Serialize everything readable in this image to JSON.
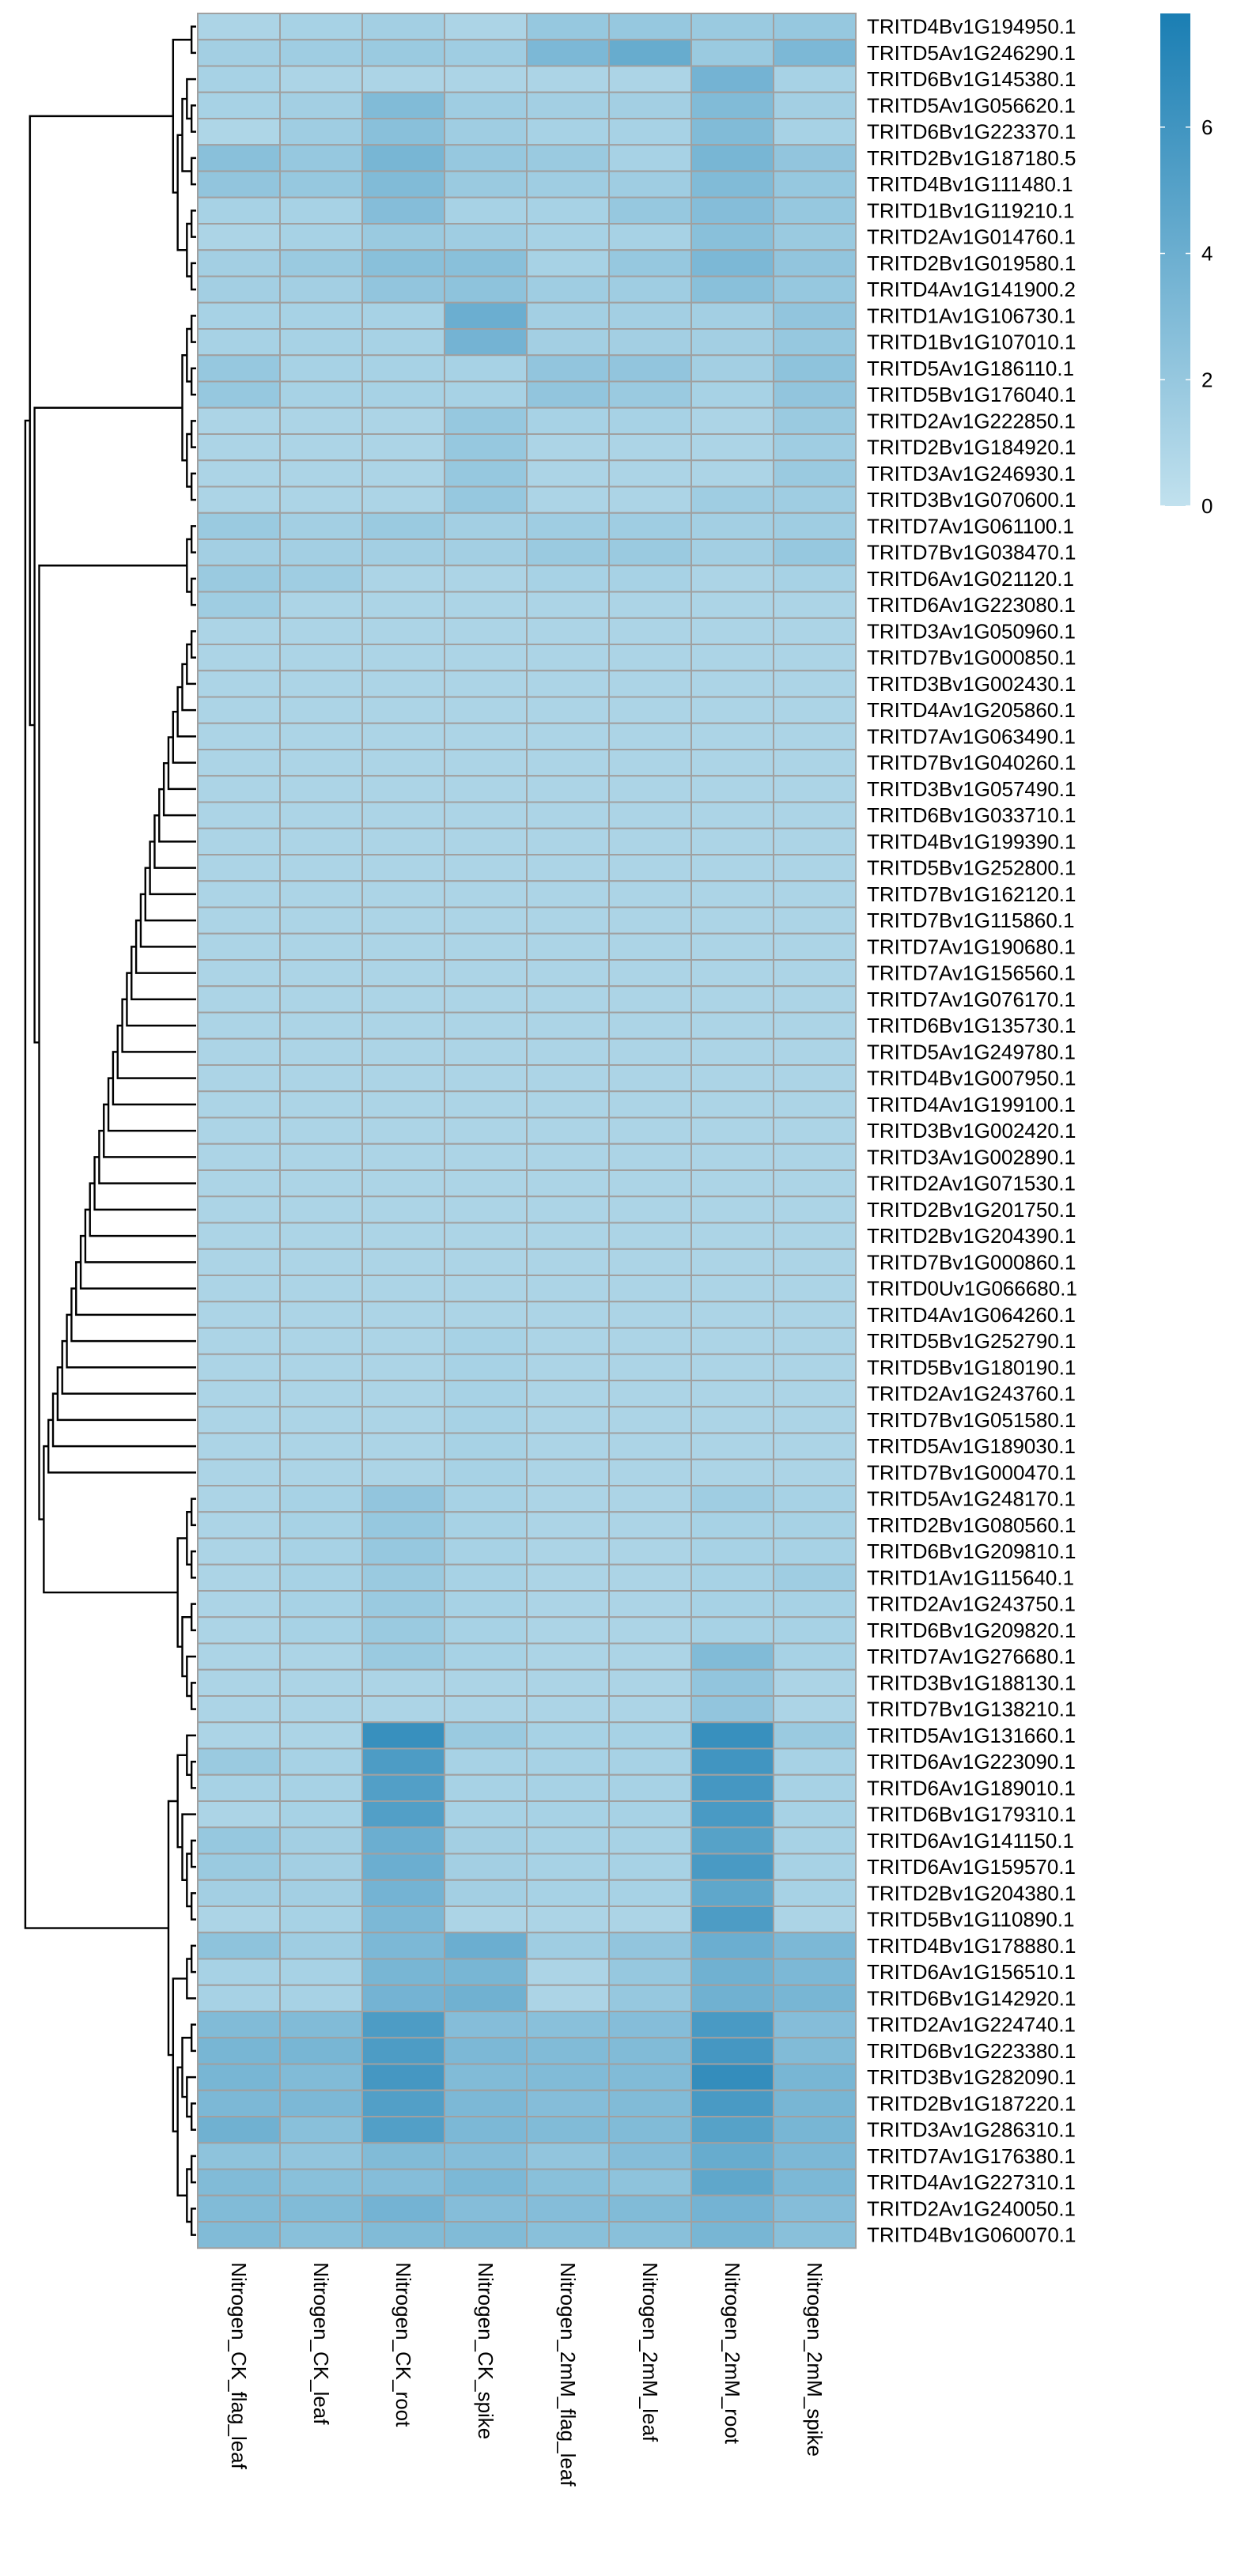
{
  "chart_data": {
    "type": "heatmap",
    "columns": [
      "Nitrogen_CK_flag_leaf",
      "Nitrogen_CK_leaf",
      "Nitrogen_CK_root",
      "Nitrogen_CK_spike",
      "Nitrogen_2mM_flag_leaf",
      "Nitrogen_2mM_leaf",
      "Nitrogen_2mM_root",
      "Nitrogen_2mM_spike"
    ],
    "rows": [
      "TRITD4Bv1G194950.1",
      "TRITD5Av1G246290.1",
      "TRITD6Bv1G145380.1",
      "TRITD5Av1G056620.1",
      "TRITD6Bv1G223370.1",
      "TRITD2Bv1G187180.5",
      "TRITD4Bv1G111480.1",
      "TRITD1Bv1G119210.1",
      "TRITD2Av1G014760.1",
      "TRITD2Bv1G019580.1",
      "TRITD4Av1G141900.2",
      "TRITD1Av1G106730.1",
      "TRITD1Bv1G107010.1",
      "TRITD5Av1G186110.1",
      "TRITD5Bv1G176040.1",
      "TRITD2Av1G222850.1",
      "TRITD2Bv1G184920.1",
      "TRITD3Av1G246930.1",
      "TRITD3Bv1G070600.1",
      "TRITD7Av1G061100.1",
      "TRITD7Bv1G038470.1",
      "TRITD6Av1G021120.1",
      "TRITD6Av1G223080.1",
      "TRITD3Av1G050960.1",
      "TRITD7Bv1G000850.1",
      "TRITD3Bv1G002430.1",
      "TRITD4Av1G205860.1",
      "TRITD7Av1G063490.1",
      "TRITD7Bv1G040260.1",
      "TRITD3Bv1G057490.1",
      "TRITD6Bv1G033710.1",
      "TRITD4Bv1G199390.1",
      "TRITD5Bv1G252800.1",
      "TRITD7Bv1G162120.1",
      "TRITD7Bv1G115860.1",
      "TRITD7Av1G190680.1",
      "TRITD7Av1G156560.1",
      "TRITD7Av1G076170.1",
      "TRITD6Bv1G135730.1",
      "TRITD5Av1G249780.1",
      "TRITD4Bv1G007950.1",
      "TRITD4Av1G199100.1",
      "TRITD3Bv1G002420.1",
      "TRITD3Av1G002890.1",
      "TRITD2Av1G071530.1",
      "TRITD2Bv1G201750.1",
      "TRITD2Bv1G204390.1",
      "TRITD7Bv1G000860.1",
      "TRITD0Uv1G066680.1",
      "TRITD4Av1G064260.1",
      "TRITD5Bv1G252790.1",
      "TRITD5Bv1G180190.1",
      "TRITD2Av1G243760.1",
      "TRITD7Bv1G051580.1",
      "TRITD5Av1G189030.1",
      "TRITD7Bv1G000470.1",
      "TRITD5Av1G248170.1",
      "TRITD2Bv1G080560.1",
      "TRITD6Bv1G209810.1",
      "TRITD1Av1G115640.1",
      "TRITD2Av1G243750.1",
      "TRITD6Bv1G209820.1",
      "TRITD7Av1G276680.1",
      "TRITD3Bv1G188130.1",
      "TRITD7Bv1G138210.1",
      "TRITD5Av1G131660.1",
      "TRITD6Av1G223090.1",
      "TRITD6Av1G189010.1",
      "TRITD6Bv1G179310.1",
      "TRITD6Av1G141150.1",
      "TRITD6Av1G159570.1",
      "TRITD2Bv1G204380.1",
      "TRITD5Bv1G110890.1",
      "TRITD4Bv1G178880.1",
      "TRITD6Av1G156510.1",
      "TRITD6Bv1G142920.1",
      "TRITD2Av1G224740.1",
      "TRITD6Bv1G223380.1",
      "TRITD3Bv1G282090.1",
      "TRITD2Bv1G187220.1",
      "TRITD3Av1G286310.1",
      "TRITD7Av1G176380.1",
      "TRITD4Av1G227310.1",
      "TRITD2Av1G240050.1",
      "TRITD4Bv1G060070.1"
    ],
    "values": [
      [
        1.0,
        1.2,
        1.4,
        1.0,
        2.0,
        2.0,
        1.8,
        2.0
      ],
      [
        1.4,
        1.6,
        1.8,
        1.6,
        3.2,
        4.2,
        1.8,
        3.2
      ],
      [
        1.2,
        1.0,
        1.0,
        1.0,
        1.0,
        1.0,
        3.6,
        1.2
      ],
      [
        1.2,
        1.4,
        3.0,
        1.6,
        1.4,
        1.4,
        3.0,
        1.4
      ],
      [
        0.9,
        1.6,
        2.6,
        1.6,
        1.2,
        1.2,
        3.0,
        1.2
      ],
      [
        2.6,
        2.0,
        3.4,
        2.0,
        1.8,
        1.2,
        3.4,
        2.2
      ],
      [
        2.2,
        2.0,
        3.0,
        1.8,
        1.6,
        1.6,
        3.0,
        2.0
      ],
      [
        1.2,
        1.2,
        2.8,
        1.2,
        1.2,
        2.0,
        2.8,
        2.0
      ],
      [
        1.0,
        1.2,
        1.8,
        1.6,
        1.2,
        1.2,
        2.6,
        1.8
      ],
      [
        1.4,
        1.8,
        2.6,
        2.6,
        1.2,
        2.0,
        3.2,
        2.2
      ],
      [
        1.4,
        1.4,
        2.2,
        2.4,
        1.6,
        1.6,
        2.6,
        2.0
      ],
      [
        1.2,
        1.2,
        1.2,
        4.0,
        1.4,
        1.4,
        1.4,
        2.2
      ],
      [
        1.2,
        1.2,
        1.2,
        3.6,
        1.4,
        1.4,
        1.4,
        2.0
      ],
      [
        2.0,
        1.2,
        1.2,
        1.2,
        2.2,
        2.2,
        1.4,
        2.4
      ],
      [
        2.0,
        1.2,
        1.2,
        1.2,
        2.2,
        1.8,
        1.2,
        2.2
      ],
      [
        1.0,
        1.0,
        1.0,
        2.0,
        1.2,
        1.2,
        1.0,
        1.8
      ],
      [
        1.0,
        1.0,
        1.0,
        2.0,
        1.0,
        1.0,
        1.0,
        1.6
      ],
      [
        1.0,
        1.0,
        1.0,
        2.0,
        1.0,
        1.0,
        1.0,
        1.8
      ],
      [
        1.0,
        1.0,
        1.0,
        2.0,
        1.0,
        1.0,
        1.6,
        1.6
      ],
      [
        1.8,
        1.4,
        1.8,
        1.4,
        1.6,
        1.6,
        1.4,
        1.6
      ],
      [
        1.4,
        1.4,
        1.4,
        1.4,
        1.8,
        1.8,
        1.4,
        2.0
      ],
      [
        1.8,
        1.6,
        1.0,
        1.0,
        1.2,
        1.2,
        1.0,
        1.2
      ],
      [
        1.6,
        1.0,
        1.0,
        1.0,
        1.0,
        1.0,
        1.0,
        1.0
      ],
      [
        1.0,
        1.0,
        1.0,
        1.0,
        1.0,
        1.0,
        1.0,
        1.0
      ],
      [
        1.0,
        1.0,
        1.0,
        1.0,
        1.0,
        1.0,
        1.0,
        1.0
      ],
      [
        1.0,
        1.0,
        1.0,
        1.0,
        1.0,
        1.0,
        1.0,
        1.0
      ],
      [
        1.0,
        1.0,
        1.0,
        1.0,
        1.0,
        1.0,
        1.0,
        1.0
      ],
      [
        1.0,
        1.0,
        1.0,
        1.0,
        1.0,
        1.0,
        1.0,
        1.0
      ],
      [
        1.0,
        1.0,
        1.0,
        1.0,
        1.0,
        1.0,
        1.0,
        1.0
      ],
      [
        1.0,
        1.0,
        1.0,
        1.0,
        1.0,
        1.0,
        1.0,
        1.0
      ],
      [
        1.0,
        1.0,
        1.0,
        1.0,
        1.0,
        1.0,
        1.0,
        1.0
      ],
      [
        1.0,
        1.0,
        1.0,
        1.0,
        1.0,
        1.0,
        1.0,
        1.0
      ],
      [
        1.0,
        1.0,
        1.0,
        1.0,
        1.0,
        1.0,
        1.0,
        1.0
      ],
      [
        1.0,
        1.0,
        1.0,
        1.0,
        1.0,
        1.0,
        1.0,
        1.0
      ],
      [
        1.0,
        1.0,
        1.0,
        1.0,
        1.0,
        1.0,
        1.0,
        1.0
      ],
      [
        1.0,
        1.0,
        1.0,
        1.0,
        1.0,
        1.0,
        1.0,
        1.0
      ],
      [
        1.0,
        1.0,
        1.0,
        1.0,
        1.0,
        1.0,
        1.0,
        1.0
      ],
      [
        1.0,
        1.0,
        1.0,
        1.0,
        1.0,
        1.0,
        1.0,
        1.0
      ],
      [
        1.0,
        1.0,
        1.0,
        1.0,
        1.0,
        1.0,
        1.0,
        1.0
      ],
      [
        1.0,
        1.0,
        1.0,
        1.0,
        1.0,
        1.0,
        1.0,
        1.0
      ],
      [
        1.0,
        1.0,
        1.0,
        1.0,
        1.0,
        1.0,
        1.0,
        1.0
      ],
      [
        1.0,
        1.0,
        1.0,
        1.0,
        1.0,
        1.0,
        1.0,
        1.0
      ],
      [
        1.0,
        1.0,
        1.0,
        1.0,
        1.0,
        1.0,
        1.0,
        1.0
      ],
      [
        1.0,
        1.0,
        1.0,
        1.0,
        1.0,
        1.0,
        1.0,
        1.0
      ],
      [
        1.0,
        1.0,
        1.0,
        1.0,
        1.0,
        1.0,
        1.0,
        1.0
      ],
      [
        1.0,
        1.0,
        1.0,
        1.0,
        1.0,
        1.0,
        1.0,
        1.0
      ],
      [
        1.0,
        1.0,
        1.0,
        1.0,
        1.0,
        1.0,
        1.0,
        1.0
      ],
      [
        1.0,
        1.0,
        1.0,
        1.0,
        1.0,
        1.0,
        1.0,
        1.0
      ],
      [
        1.0,
        1.0,
        1.0,
        1.0,
        1.0,
        1.0,
        1.0,
        1.0
      ],
      [
        1.0,
        1.0,
        1.0,
        1.0,
        1.0,
        1.0,
        1.0,
        1.0
      ],
      [
        1.0,
        1.0,
        1.0,
        1.2,
        1.0,
        1.0,
        1.0,
        1.0
      ],
      [
        1.0,
        1.0,
        1.0,
        1.2,
        1.0,
        1.0,
        1.0,
        1.0
      ],
      [
        1.0,
        1.0,
        1.0,
        1.2,
        1.0,
        1.0,
        1.0,
        1.0
      ],
      [
        1.0,
        1.0,
        1.0,
        1.2,
        1.0,
        1.0,
        1.0,
        1.0
      ],
      [
        1.0,
        1.0,
        1.0,
        1.2,
        1.0,
        1.0,
        1.0,
        1.0
      ],
      [
        1.0,
        1.0,
        1.0,
        1.2,
        1.0,
        1.0,
        1.0,
        1.0
      ],
      [
        1.0,
        1.2,
        2.2,
        1.2,
        1.0,
        1.0,
        1.6,
        1.2
      ],
      [
        1.0,
        1.2,
        2.0,
        1.2,
        1.0,
        1.0,
        1.2,
        1.2
      ],
      [
        1.0,
        1.2,
        2.0,
        1.2,
        1.0,
        1.0,
        1.2,
        1.2
      ],
      [
        1.0,
        1.2,
        1.8,
        1.2,
        1.0,
        1.0,
        1.2,
        1.6
      ],
      [
        1.0,
        1.2,
        1.8,
        1.2,
        1.0,
        1.0,
        1.2,
        1.2
      ],
      [
        1.0,
        1.2,
        1.8,
        1.2,
        1.0,
        1.0,
        1.2,
        1.2
      ],
      [
        1.0,
        1.0,
        1.8,
        1.2,
        1.0,
        1.0,
        3.0,
        1.2
      ],
      [
        1.0,
        1.0,
        1.0,
        1.0,
        1.0,
        1.0,
        2.2,
        1.0
      ],
      [
        1.0,
        1.0,
        1.0,
        1.0,
        1.0,
        1.0,
        2.2,
        1.0
      ],
      [
        1.0,
        1.0,
        6.4,
        1.8,
        1.2,
        1.2,
        6.4,
        1.8
      ],
      [
        1.8,
        1.2,
        5.4,
        1.2,
        1.2,
        1.2,
        6.0,
        1.2
      ],
      [
        1.2,
        1.2,
        5.2,
        1.2,
        1.2,
        1.2,
        5.8,
        1.2
      ],
      [
        1.0,
        1.2,
        5.2,
        1.2,
        1.2,
        1.2,
        5.6,
        1.2
      ],
      [
        2.0,
        1.4,
        4.0,
        1.4,
        1.2,
        1.2,
        5.0,
        1.2
      ],
      [
        1.8,
        1.4,
        4.0,
        1.4,
        1.2,
        1.2,
        5.6,
        1.2
      ],
      [
        1.4,
        1.4,
        3.6,
        1.4,
        1.2,
        1.2,
        4.6,
        1.2
      ],
      [
        1.0,
        1.2,
        3.2,
        1.0,
        1.0,
        1.0,
        5.4,
        1.0
      ],
      [
        2.4,
        1.6,
        3.2,
        4.0,
        1.6,
        2.2,
        4.0,
        3.2
      ],
      [
        1.2,
        1.2,
        3.4,
        3.4,
        1.0,
        2.0,
        3.8,
        3.2
      ],
      [
        1.2,
        1.2,
        3.6,
        3.8,
        1.0,
        2.0,
        3.8,
        3.4
      ],
      [
        3.0,
        3.0,
        5.4,
        2.8,
        2.6,
        2.8,
        5.6,
        2.8
      ],
      [
        3.4,
        3.4,
        5.4,
        3.2,
        3.0,
        3.0,
        5.8,
        3.0
      ],
      [
        3.4,
        3.0,
        5.8,
        3.0,
        3.0,
        3.0,
        6.6,
        3.4
      ],
      [
        3.2,
        3.2,
        5.2,
        3.2,
        2.8,
        3.0,
        5.6,
        3.4
      ],
      [
        3.8,
        2.6,
        5.2,
        3.2,
        3.0,
        3.0,
        5.0,
        3.4
      ],
      [
        2.4,
        2.2,
        3.0,
        2.8,
        2.2,
        2.8,
        4.2,
        3.2
      ],
      [
        3.0,
        2.6,
        2.8,
        3.2,
        2.6,
        2.4,
        4.6,
        3.2
      ],
      [
        3.0,
        3.0,
        3.6,
        2.8,
        2.8,
        3.0,
        3.6,
        2.8
      ],
      [
        3.0,
        2.6,
        3.0,
        3.0,
        2.6,
        2.6,
        3.4,
        2.6
      ]
    ],
    "value_range": [
      0,
      7.8
    ],
    "color_low": "#c1e1ee",
    "color_high": "#1a7eb3",
    "grid_color": "#a0a0a0",
    "legend_ticks": [
      0,
      2,
      4,
      6
    ],
    "legend_placement": "top-right",
    "dendrogram": "row clustering, left",
    "xlabel": "",
    "ylabel": ""
  }
}
